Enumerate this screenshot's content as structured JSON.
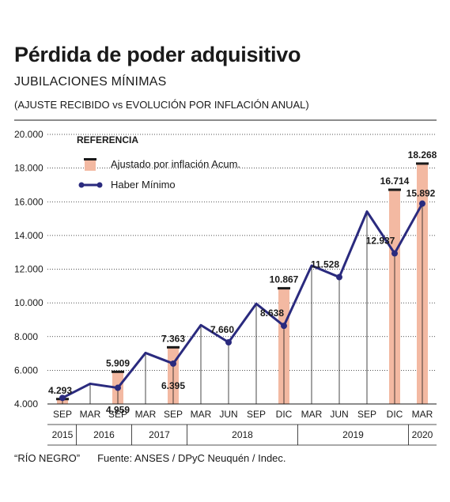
{
  "header": {
    "title": "Pérdida de poder adquisitivo",
    "subtitle": "JUBILACIONES MÍNIMAS",
    "subtitle2": "(AJUSTE RECIBIDO vs EVOLUCIÓN POR INFLACIÓN ANUAL)"
  },
  "footer": {
    "credit": "“RÍO NEGRO”",
    "source": "Fuente: ANSES / DPyC Neuquén / Indec."
  },
  "legend": {
    "title": "REFERENCIA",
    "bar_label": "Ajustado por inflación Acum.",
    "line_label": "Haber Mínimo"
  },
  "colors": {
    "bar": "#f3b9a2",
    "bar_cap": "#1a1a1a",
    "line": "#2a2a7e",
    "grid": "#1a1a1a"
  },
  "chart_data": {
    "type": "bar",
    "categories": [
      "SEP",
      "MAR",
      "SEP",
      "MAR",
      "SEP",
      "MAR",
      "JUN",
      "SEP",
      "DIC",
      "MAR",
      "JUN",
      "SEP",
      "DIC",
      "MAR"
    ],
    "year_groups": [
      {
        "label": "2015",
        "start": 0,
        "end": 0
      },
      {
        "label": "2016",
        "start": 1,
        "end": 2
      },
      {
        "label": "2017",
        "start": 3,
        "end": 4
      },
      {
        "label": "2018",
        "start": 5,
        "end": 8
      },
      {
        "label": "2019",
        "start": 9,
        "end": 12
      },
      {
        "label": "2020",
        "start": 13,
        "end": 13
      }
    ],
    "ylim": [
      4000,
      20000
    ],
    "yticks": [
      4000,
      6000,
      8000,
      10000,
      12000,
      14000,
      16000,
      18000,
      20000
    ],
    "ytick_labels": [
      "4.000",
      "6.000",
      "8.000",
      "10.000",
      "12.000",
      "14.000",
      "16.000",
      "18.000",
      "20.000"
    ],
    "series": [
      {
        "name": "Ajustado por inflación Acum.",
        "kind": "bar",
        "values": [
          4293,
          null,
          5909,
          null,
          7363,
          null,
          null,
          null,
          10867,
          null,
          null,
          null,
          16714,
          18268
        ],
        "labels": [
          "4.293",
          null,
          "5.909",
          null,
          "7.363",
          null,
          null,
          null,
          "10.867",
          null,
          null,
          null,
          "16.714",
          "18.268"
        ]
      },
      {
        "name": "Haber Mínimo",
        "kind": "line",
        "values": [
          4359,
          5200,
          4959,
          7030,
          6395,
          8680,
          7660,
          9950,
          8638,
          12210,
          11528,
          15420,
          12937,
          15892
        ],
        "labels": [
          null,
          null,
          "4.959",
          null,
          "6.395",
          null,
          "7.660",
          null,
          "8.638",
          null,
          "11.528",
          null,
          "12.937",
          "15.892"
        ],
        "markers": [
          true,
          false,
          true,
          false,
          true,
          false,
          true,
          false,
          true,
          false,
          true,
          false,
          true,
          true
        ]
      }
    ]
  }
}
